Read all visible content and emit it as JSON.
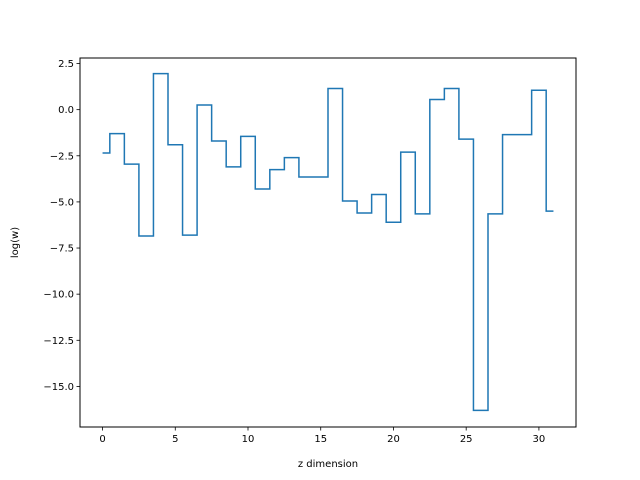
{
  "chart_data": {
    "type": "line",
    "drawstyle": "steps-mid",
    "title": "",
    "xlabel": "z dimension",
    "ylabel": "log(w)",
    "xlim": [
      -1.55,
      32.55
    ],
    "ylim": [
      -17.2,
      2.8
    ],
    "xticks": [
      0,
      5,
      10,
      15,
      20,
      25,
      30
    ],
    "xtick_labels": [
      "0",
      "5",
      "10",
      "15",
      "20",
      "25",
      "30"
    ],
    "yticks": [
      2.5,
      0.0,
      -2.5,
      -5.0,
      -7.5,
      -10.0,
      -12.5,
      -15.0
    ],
    "ytick_labels": [
      "2.5",
      "0.0",
      "−2.5",
      "−5.0",
      "−7.5",
      "−10.0",
      "−12.5",
      "−15.0"
    ],
    "grid": false,
    "series": [
      {
        "color": "#1f77b4",
        "x": [
          0,
          1,
          2,
          3,
          4,
          5,
          6,
          7,
          8,
          9,
          10,
          11,
          12,
          13,
          14,
          15,
          16,
          17,
          18,
          19,
          20,
          21,
          22,
          23,
          24,
          25,
          26,
          27,
          28,
          29,
          30,
          31
        ],
        "y": [
          -2.35,
          -1.3,
          -2.95,
          -6.85,
          1.95,
          -1.9,
          -6.8,
          0.25,
          -1.7,
          -3.1,
          -1.45,
          -4.3,
          -3.25,
          -2.6,
          -3.65,
          -3.65,
          1.15,
          -4.95,
          -5.6,
          -4.6,
          -6.1,
          -2.3,
          -5.65,
          0.55,
          1.15,
          -1.6,
          -16.3,
          -5.65,
          -1.35,
          -1.35,
          1.05,
          -5.5
        ]
      }
    ]
  }
}
